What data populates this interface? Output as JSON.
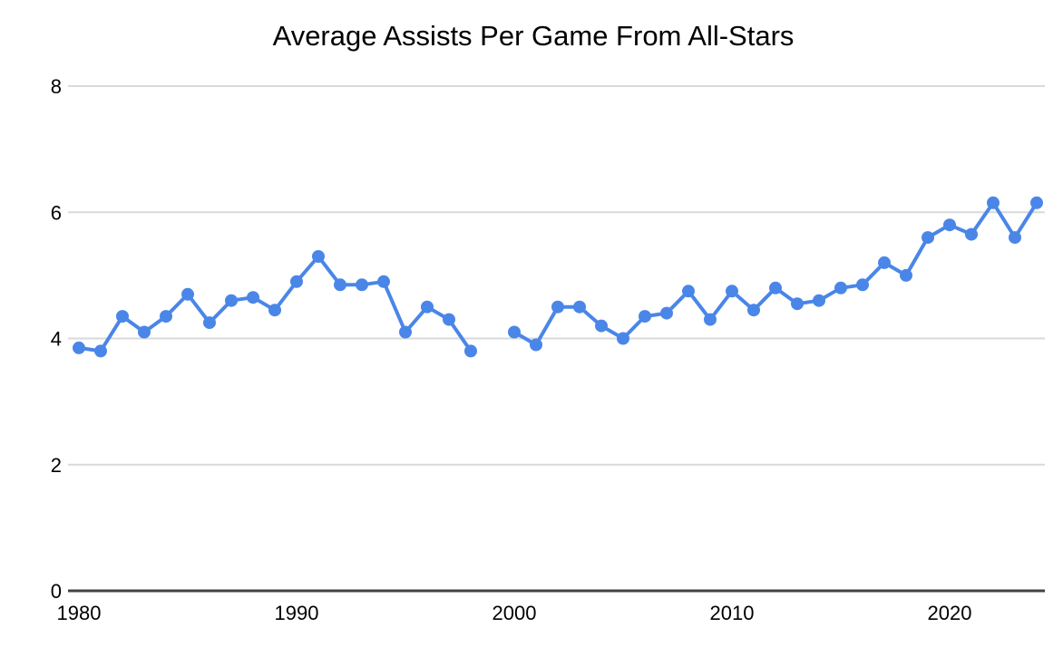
{
  "title": "Average Assists Per Game From All-Stars",
  "colors": {
    "series": "#4a86e8",
    "gridline": "#d9d9d9",
    "axis": "#424242",
    "text": "#000000",
    "background": "#ffffff"
  },
  "chart_data": {
    "type": "line",
    "title": "Average Assists Per Game From All-Stars",
    "xlabel": "",
    "ylabel": "",
    "legend": "none",
    "grid": "horizontal",
    "ylim": [
      0,
      8
    ],
    "yticks": [
      0,
      2,
      4,
      6,
      8
    ],
    "xticks": [
      1980,
      1990,
      2000,
      2010,
      2020
    ],
    "xlim": [
      1980,
      2024
    ],
    "missing_years": [
      1999
    ],
    "x": [
      1980,
      1981,
      1982,
      1983,
      1984,
      1985,
      1986,
      1987,
      1988,
      1989,
      1990,
      1991,
      1992,
      1993,
      1994,
      1995,
      1996,
      1997,
      1998,
      2000,
      2001,
      2002,
      2003,
      2004,
      2005,
      2006,
      2007,
      2008,
      2009,
      2010,
      2011,
      2012,
      2013,
      2014,
      2015,
      2016,
      2017,
      2018,
      2019,
      2020,
      2021,
      2022,
      2023,
      2024
    ],
    "values": [
      3.85,
      3.8,
      4.35,
      4.1,
      4.35,
      4.7,
      4.25,
      4.6,
      4.65,
      4.45,
      4.9,
      5.3,
      4.85,
      4.85,
      4.9,
      4.1,
      4.5,
      4.3,
      3.8,
      4.1,
      3.9,
      4.5,
      4.5,
      4.2,
      4.0,
      4.35,
      4.4,
      4.75,
      4.3,
      4.75,
      4.45,
      4.8,
      4.55,
      4.6,
      4.8,
      4.85,
      5.2,
      5.0,
      5.6,
      5.8,
      5.65,
      6.15,
      5.6,
      6.15
    ]
  }
}
